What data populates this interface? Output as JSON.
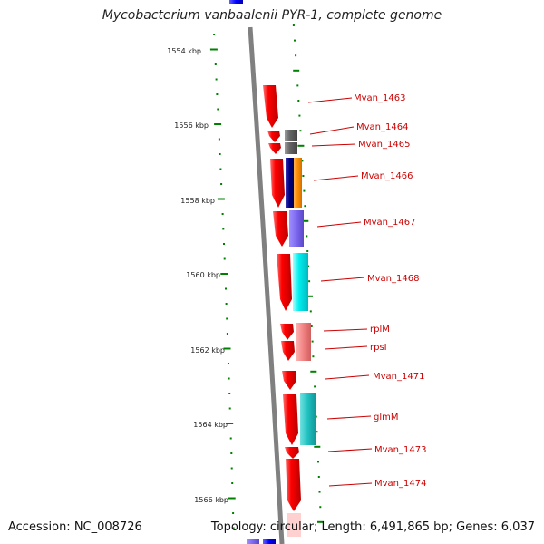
{
  "title": "Mycobacterium vanbaalenii PYR-1, complete genome",
  "footer": {
    "accession": "Accession: NC_008726",
    "topology": "Topology: circular; Length: 6,491,865 bp; Genes: 6,037"
  },
  "ticks": [
    {
      "label": "1554 kbp"
    },
    {
      "label": "1556 kbp"
    },
    {
      "label": "1558 kbp"
    },
    {
      "label": "1560 kbp"
    },
    {
      "label": "1562 kbp"
    },
    {
      "label": "1564 kbp"
    },
    {
      "label": "1566 kbp"
    }
  ],
  "genes": [
    {
      "label": "Mvan_1463"
    },
    {
      "label": "Mvan_1464"
    },
    {
      "label": "Mvan_1465"
    },
    {
      "label": "Mvan_1466"
    },
    {
      "label": "Mvan_1467"
    },
    {
      "label": "Mvan_1468"
    },
    {
      "label": "rplM"
    },
    {
      "label": "rpsI"
    },
    {
      "label": "Mvan_1471"
    },
    {
      "label": "glmM"
    },
    {
      "label": "Mvan_1473"
    },
    {
      "label": "Mvan_1474"
    }
  ],
  "colors": {
    "cds": "#ff0000",
    "backbone": "#808080",
    "tick": "#008000",
    "label": "#cc0000",
    "cog_dark_gray": "#666666",
    "cog_navy": "#000080",
    "cog_orange": "#ff8c00",
    "cog_slate": "#7b68ee",
    "cog_cyan": "#00e5ee",
    "cog_pink": "#f08080",
    "cog_teal": "#20c0c0",
    "cog_blue": "#0000ff"
  }
}
